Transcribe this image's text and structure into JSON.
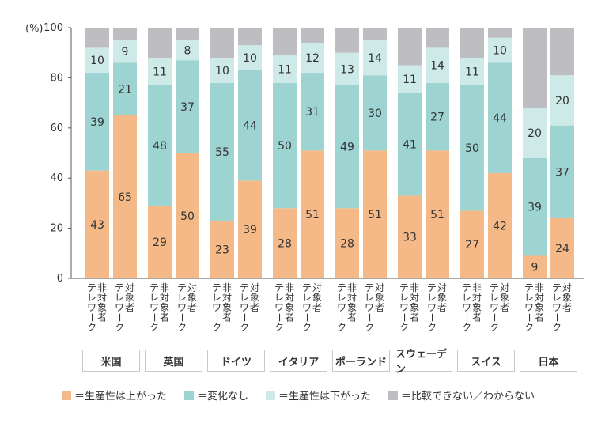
{
  "chart_data": {
    "type": "bar",
    "stacked": true,
    "y_unit": "(%)",
    "ylim": [
      0,
      100
    ],
    "yticks": [
      0,
      20,
      40,
      60,
      80,
      100
    ],
    "grid": false,
    "legend_placement": "bottom",
    "countries": [
      "米国",
      "英国",
      "ドイツ",
      "イタリア",
      "ポーランド",
      "スウェーデン",
      "スイス",
      "日本"
    ],
    "bar_labels": [
      "非対象者テレワーク",
      "対象者テレワーク"
    ],
    "series": [
      {
        "name": "＝生産性は上がった",
        "color": "#f5b987",
        "values": [
          43,
          65,
          29,
          50,
          23,
          39,
          28,
          51,
          28,
          51,
          33,
          51,
          27,
          42,
          9,
          24
        ]
      },
      {
        "name": "＝変化なし",
        "color": "#9dd3d1",
        "values": [
          39,
          21,
          48,
          37,
          55,
          44,
          50,
          31,
          49,
          30,
          41,
          27,
          50,
          44,
          39,
          37
        ]
      },
      {
        "name": "＝生産性は下がった",
        "color": "#cdeae8",
        "values": [
          10,
          9,
          11,
          8,
          10,
          10,
          11,
          12,
          13,
          14,
          11,
          14,
          11,
          10,
          20,
          20
        ]
      },
      {
        "name": "＝比較できない／わからない",
        "color": "#bebec2",
        "values": [
          8,
          5,
          12,
          5,
          12,
          7,
          11,
          6,
          10,
          5,
          15,
          8,
          12,
          4,
          32,
          19
        ]
      }
    ]
  },
  "colors": {
    "axis": "#555555",
    "label_text": "#333333"
  }
}
